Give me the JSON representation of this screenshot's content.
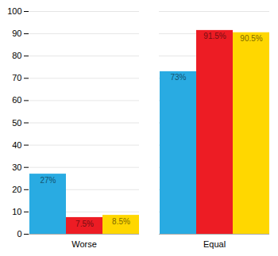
{
  "chart_data": {
    "type": "bar",
    "categories": [
      "Worse",
      "Equal"
    ],
    "series": [
      {
        "color": "#29ABE2",
        "values": [
          27,
          73
        ],
        "value_labels": [
          "27%",
          "73%"
        ]
      },
      {
        "color": "#ED1C24",
        "values": [
          7.5,
          91.5
        ],
        "value_labels": [
          "7.5%",
          "91.5%"
        ]
      },
      {
        "color": "#FFD700",
        "values": [
          8.5,
          90.5
        ],
        "value_labels": [
          "8.5%",
          "90.5%"
        ]
      }
    ],
    "ylim": [
      0,
      100
    ],
    "yticks": [
      0,
      10,
      20,
      30,
      40,
      50,
      60,
      70,
      80,
      90,
      100
    ],
    "grid": true,
    "data_labels": true
  }
}
